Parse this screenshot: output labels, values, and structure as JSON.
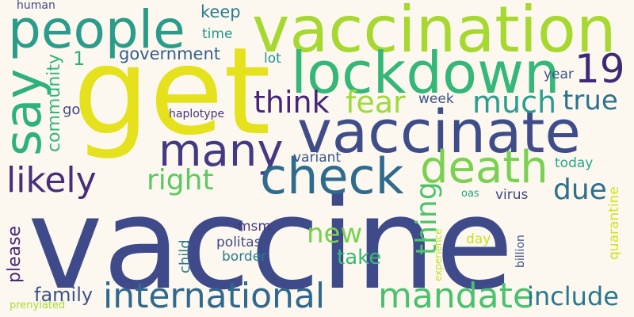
{
  "background": "#fcf8ef",
  "words": [
    {
      "id": "vaccine",
      "text": "vaccine",
      "color": "#3f4a8a"
    },
    {
      "id": "get",
      "text": "get",
      "color": "#e6e11d"
    },
    {
      "id": "vaccination",
      "text": "vaccination",
      "color": "#a6d82f"
    },
    {
      "id": "vaccinate",
      "text": "vaccinate",
      "color": "#3e4c8a"
    },
    {
      "id": "lockdown",
      "text": "lockdown",
      "color": "#35b779"
    },
    {
      "id": "people",
      "text": "people",
      "color": "#2b9c8a"
    },
    {
      "id": "say",
      "text": "say",
      "color": "#2db27d"
    },
    {
      "id": "many",
      "text": "many",
      "color": "#443a83"
    },
    {
      "id": "check",
      "text": "check",
      "color": "#2f6b8e"
    },
    {
      "id": "death",
      "text": "death",
      "color": "#7ad151"
    },
    {
      "id": "international",
      "text": "international",
      "color": "#31688e"
    },
    {
      "id": "mandate",
      "text": "mandate",
      "color": "#4ac16d"
    },
    {
      "id": "likely",
      "text": "likely",
      "color": "#472d7b"
    },
    {
      "id": "nineteen",
      "text": "19",
      "color": "#3b2a78"
    },
    {
      "id": "think",
      "text": "think",
      "color": "#46247a"
    },
    {
      "id": "fear",
      "text": "fear",
      "color": "#9fda3a"
    },
    {
      "id": "much",
      "text": "much",
      "color": "#2a9d8f"
    },
    {
      "id": "true",
      "text": "true",
      "color": "#2c728e"
    },
    {
      "id": "right",
      "text": "right",
      "color": "#5ec962"
    },
    {
      "id": "due",
      "text": "due",
      "color": "#2e6f8e"
    },
    {
      "id": "new",
      "text": "new",
      "color": "#7ad151"
    },
    {
      "id": "thing",
      "text": "thing",
      "color": "#4ec36b"
    },
    {
      "id": "include",
      "text": "include",
      "color": "#2a788e"
    },
    {
      "id": "take",
      "text": "take",
      "color": "#3bbb75"
    },
    {
      "id": "family",
      "text": "family",
      "color": "#3b528b"
    },
    {
      "id": "please",
      "text": "please",
      "color": "#482878"
    },
    {
      "id": "government",
      "text": "government",
      "color": "#355f8d"
    },
    {
      "id": "keep",
      "text": "keep",
      "color": "#287d8e"
    },
    {
      "id": "time",
      "text": "time",
      "color": "#1f988b"
    },
    {
      "id": "lot",
      "text": "lot",
      "color": "#21918c"
    },
    {
      "id": "year",
      "text": "year",
      "color": "#39568c"
    },
    {
      "id": "community",
      "text": "community",
      "color": "#34b679"
    },
    {
      "id": "one",
      "text": "1",
      "color": "#2ab07f"
    },
    {
      "id": "go",
      "text": "go",
      "color": "#3f4788"
    },
    {
      "id": "haplotype",
      "text": "haplotype",
      "color": "#453882"
    },
    {
      "id": "week",
      "text": "week",
      "color": "#3b528b"
    },
    {
      "id": "human",
      "text": "human",
      "color": "#3e4989"
    },
    {
      "id": "variant",
      "text": "variant",
      "color": "#39558c"
    },
    {
      "id": "today",
      "text": "today",
      "color": "#22a884"
    },
    {
      "id": "quarantine",
      "text": "quarantine",
      "color": "#d2e21b"
    },
    {
      "id": "oas",
      "text": "oas",
      "color": "#20a386"
    },
    {
      "id": "virus",
      "text": "virus",
      "color": "#414487"
    },
    {
      "id": "msm",
      "text": "msm",
      "color": "#453781"
    },
    {
      "id": "politas",
      "text": "politas",
      "color": "#3e4a89"
    },
    {
      "id": "border",
      "text": "border",
      "color": "#287c8e"
    },
    {
      "id": "child",
      "text": "child",
      "color": "#2a788e"
    },
    {
      "id": "experience",
      "text": "experience",
      "color": "#c2df23"
    },
    {
      "id": "day",
      "text": "day",
      "color": "#c8e020"
    },
    {
      "id": "billion",
      "text": "billion",
      "color": "#3d4e8a"
    },
    {
      "id": "prenylated",
      "text": "prenylated",
      "color": "#a8db34"
    }
  ]
}
